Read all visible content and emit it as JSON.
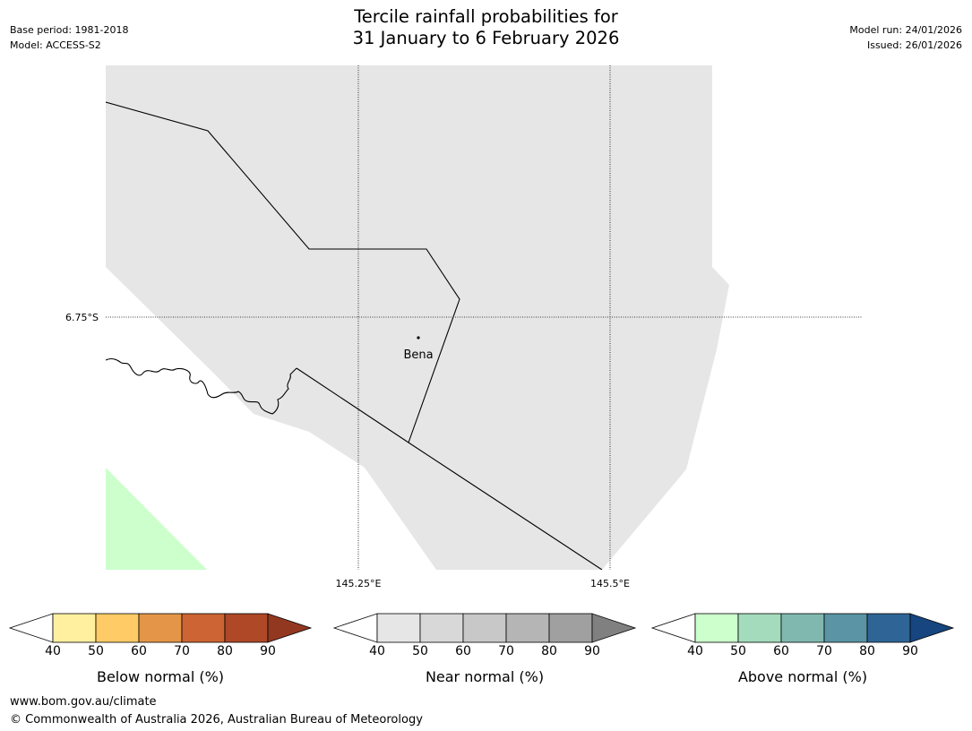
{
  "header": {
    "title_line1": "Tercile rainfall probabilities for",
    "title_line2": "31 January to 6 February 2026",
    "base_period": "Base period: 1981-2018",
    "model": "Model: ACCESS-S2",
    "model_run": "Model run: 24/01/2026",
    "issued": "Issued: 26/01/2026"
  },
  "map": {
    "land_color": "#e6e6e6",
    "above_normal_color": "#ccffcc",
    "lat_label": "6.75°S",
    "lon_labels": [
      "145.25°E",
      "145.5°E"
    ],
    "place": {
      "name": "Bena"
    }
  },
  "colorbars": [
    {
      "label": "Below normal (%)",
      "ticks": [
        "40",
        "50",
        "60",
        "70",
        "80",
        "90"
      ],
      "colors": [
        "#fff0a0",
        "#fecb66",
        "#e49547",
        "#cc6533",
        "#ae4827"
      ],
      "over_color": "#923821"
    },
    {
      "label": "Near normal (%)",
      "ticks": [
        "40",
        "50",
        "60",
        "70",
        "80",
        "90"
      ],
      "colors": [
        "#e6e6e6",
        "#d8d8d8",
        "#c8c8c8",
        "#b5b5b5",
        "#a0a0a0"
      ],
      "over_color": "#808080"
    },
    {
      "label": "Above normal (%)",
      "ticks": [
        "40",
        "50",
        "60",
        "70",
        "80",
        "90"
      ],
      "colors": [
        "#ccffcc",
        "#a4dbbd",
        "#80b8b0",
        "#5b94a4",
        "#2f6596"
      ],
      "over_color": "#16457f"
    }
  ],
  "footer": {
    "url": "www.bom.gov.au/climate",
    "copyright": "© Commonwealth of Australia 2026, Australian Bureau of Meteorology"
  }
}
